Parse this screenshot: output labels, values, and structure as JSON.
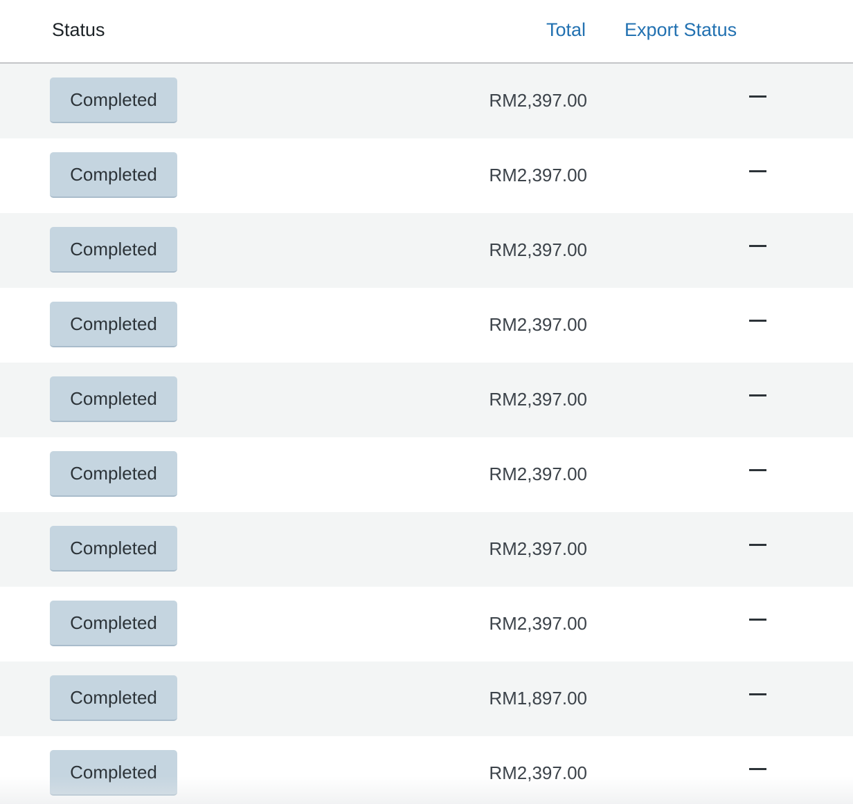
{
  "table": {
    "columns": {
      "status": "Status",
      "total": "Total",
      "export_status": "Export Status"
    },
    "rows": [
      {
        "status": "Completed",
        "total": "RM2,397.00",
        "export_status": "—"
      },
      {
        "status": "Completed",
        "total": "RM2,397.00",
        "export_status": "—"
      },
      {
        "status": "Completed",
        "total": "RM2,397.00",
        "export_status": "—"
      },
      {
        "status": "Completed",
        "total": "RM2,397.00",
        "export_status": "—"
      },
      {
        "status": "Completed",
        "total": "RM2,397.00",
        "export_status": "—"
      },
      {
        "status": "Completed",
        "total": "RM2,397.00",
        "export_status": "—"
      },
      {
        "status": "Completed",
        "total": "RM2,397.00",
        "export_status": "—"
      },
      {
        "status": "Completed",
        "total": "RM2,397.00",
        "export_status": "—"
      },
      {
        "status": "Completed",
        "total": "RM1,897.00",
        "export_status": "—"
      },
      {
        "status": "Completed",
        "total": "RM2,397.00",
        "export_status": "—"
      }
    ]
  },
  "colors": {
    "link": "#2271b1",
    "badge_bg": "#c5d5e0",
    "row_alt": "#f3f5f5"
  },
  "icons": {
    "export_status": "dash-icon"
  }
}
